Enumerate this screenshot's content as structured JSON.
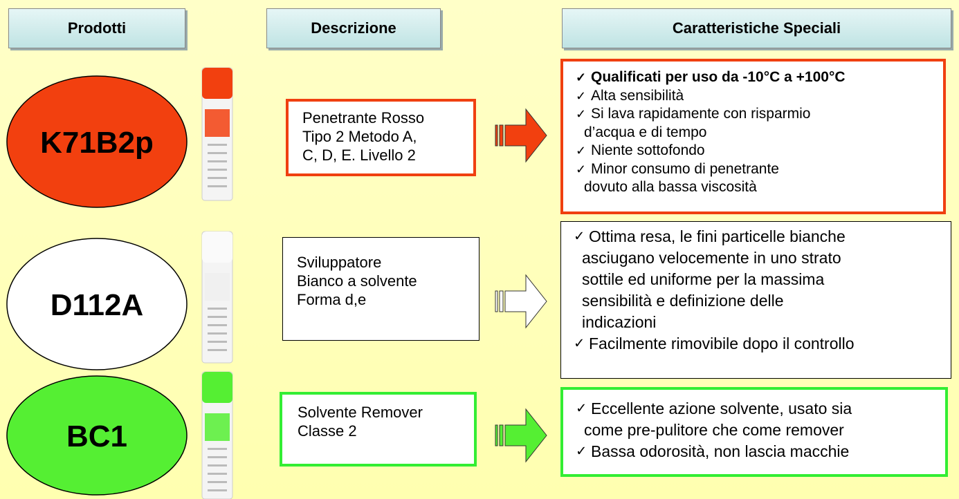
{
  "header": {
    "columns": [
      "Prodotti",
      "Descrizione",
      "Caratteristiche Speciali"
    ]
  },
  "rows": [
    {
      "product": "K71B2p",
      "description": [
        "Penetrante Rosso",
        "Tipo 2 Metodo A,",
        "C, D, E. Livello 2"
      ],
      "features": [
        [
          "Qualificati per uso da -10°C a +100°C"
        ],
        [
          "Alta sensibilità"
        ],
        [
          "Si lava rapidamente con risparmio",
          "d’acqua e di tempo"
        ],
        [
          "Niente sottofondo"
        ],
        [
          "Minor consumo di penetrante",
          "dovuto alla bassa viscosità"
        ]
      ]
    },
    {
      "product": "D112A",
      "description": [
        "Sviluppatore",
        "Bianco a solvente",
        "Forma d,e"
      ],
      "features": [
        [
          "Ottima resa, le fini particelle bianche",
          "asciugano velocemente in uno strato",
          "sottile ed uniforme per la massima",
          "sensibilità e definizione delle",
          "indicazioni"
        ],
        [
          "Facilmente rimovibile dopo il controllo"
        ]
      ]
    },
    {
      "product": "BC1",
      "description": [
        "Solvente Remover",
        "Classe 2"
      ],
      "features": [
        [
          "Eccellente azione solvente, usato sia",
          "come pre-pulitore che come remover"
        ],
        [
          "Bassa odorosità, non lascia macchie"
        ]
      ]
    }
  ]
}
